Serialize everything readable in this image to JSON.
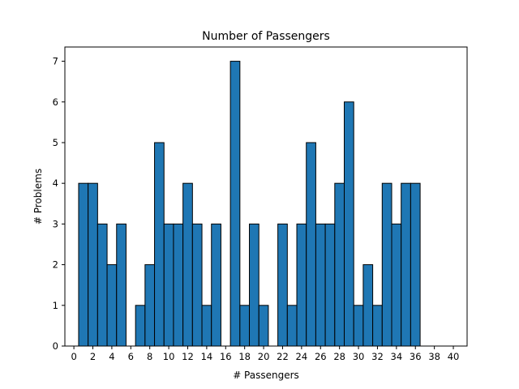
{
  "chart_data": {
    "type": "bar",
    "title": "Number of Passengers",
    "xlabel": "# Passengers",
    "ylabel": "# Problems",
    "x": [
      1,
      2,
      3,
      4,
      5,
      6,
      7,
      8,
      9,
      10,
      11,
      12,
      13,
      14,
      15,
      16,
      17,
      18,
      19,
      20,
      21,
      22,
      23,
      24,
      25,
      26,
      27,
      28,
      29,
      30,
      31,
      32,
      33,
      34,
      35,
      36,
      37,
      38,
      39,
      40
    ],
    "values": [
      4,
      4,
      3,
      2,
      3,
      0,
      1,
      2,
      5,
      3,
      3,
      4,
      3,
      1,
      3,
      0,
      7,
      1,
      3,
      1,
      0,
      3,
      1,
      3,
      5,
      3,
      3,
      4,
      6,
      1,
      2,
      1,
      4,
      3,
      4,
      4,
      0,
      0,
      0,
      0
    ],
    "xlim": [
      -0.95,
      41.45
    ],
    "ylim": [
      0,
      7.35
    ],
    "xticks": [
      0,
      2,
      4,
      6,
      8,
      10,
      12,
      14,
      16,
      18,
      20,
      22,
      24,
      26,
      28,
      30,
      32,
      34,
      36,
      38,
      40
    ],
    "yticks": [
      0,
      1,
      2,
      3,
      4,
      5,
      6,
      7
    ],
    "bar_color": "#1f77b4",
    "edge_color": "#000000",
    "grid": false
  }
}
